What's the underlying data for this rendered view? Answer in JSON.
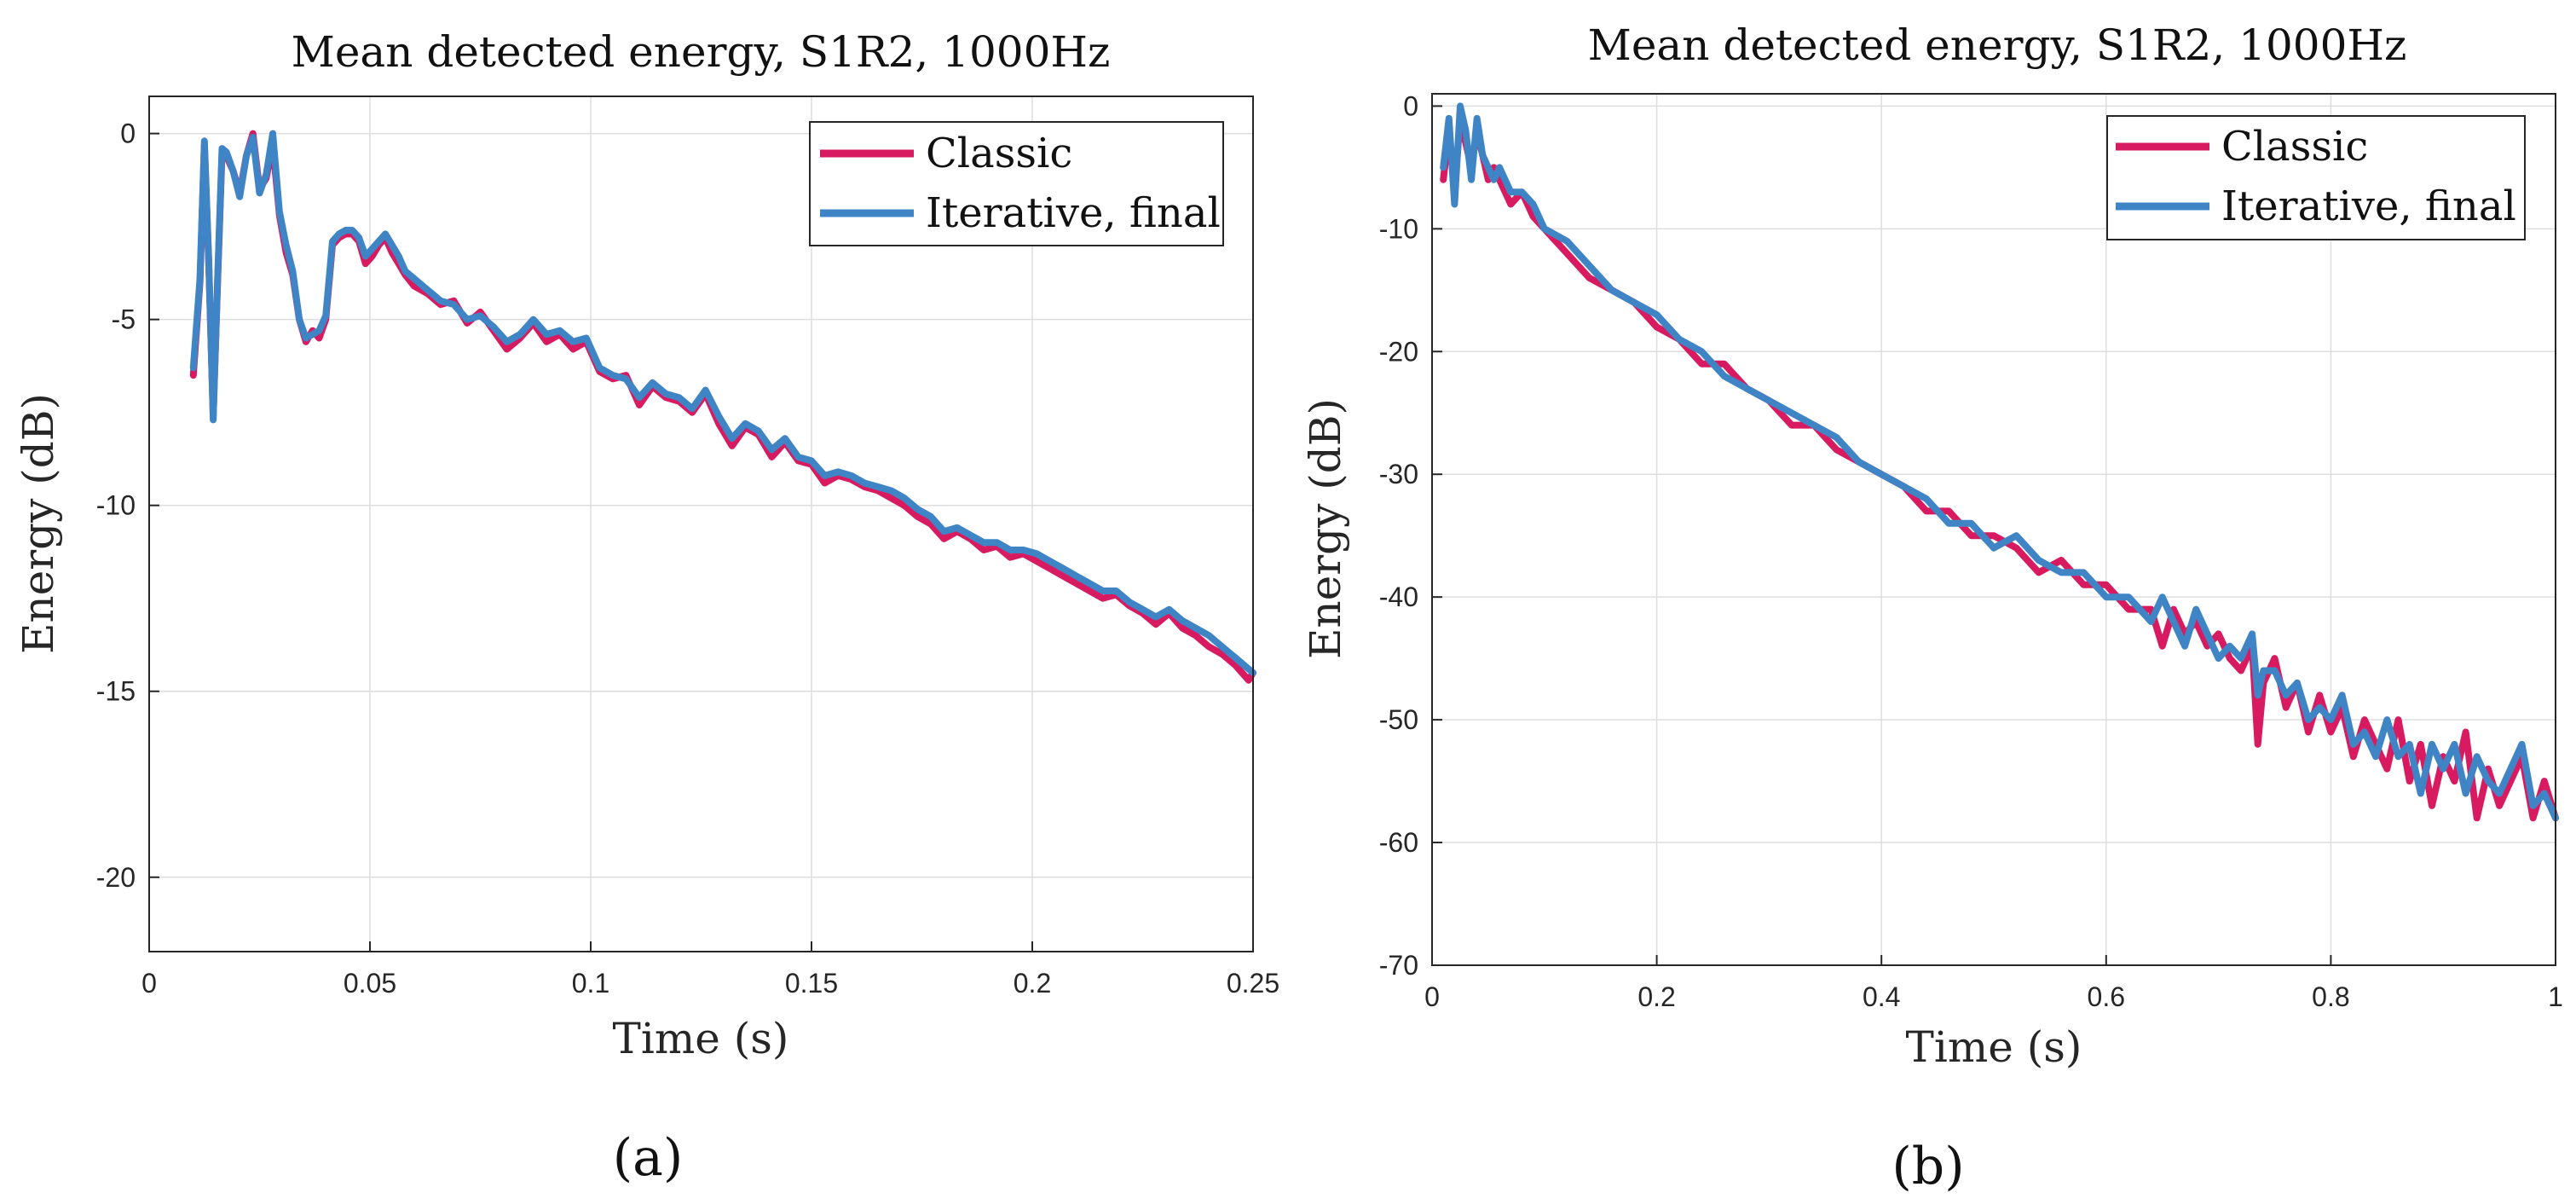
{
  "chart_data": [
    {
      "id": "a",
      "type": "line",
      "panel_label": "(a)",
      "title": "Mean detected energy, S1R2, 1000Hz",
      "xlabel": "Time (s)",
      "ylabel": "Energy (dB)",
      "xlim": [
        0,
        0.25
      ],
      "ylim": [
        -22,
        1
      ],
      "xticks": [
        0,
        0.05,
        0.1,
        0.15,
        0.2,
        0.25
      ],
      "xtick_labels": [
        "0",
        "0.05",
        "0.1",
        "0.15",
        "0.2",
        "0.25"
      ],
      "yticks": [
        0,
        -5,
        -10,
        -15,
        -20
      ],
      "ytick_labels": [
        "0",
        "-5",
        "-10",
        "-15",
        "-20"
      ],
      "grid": true,
      "legend_position": "top-right",
      "series": [
        {
          "name": "Classic",
          "color": "#d81b60",
          "x": [
            0.01,
            0.0115,
            0.0125,
            0.0135,
            0.0145,
            0.0155,
            0.0165,
            0.0175,
            0.019,
            0.0205,
            0.022,
            0.0235,
            0.025,
            0.0265,
            0.028,
            0.0295,
            0.031,
            0.0325,
            0.034,
            0.0355,
            0.037,
            0.0385,
            0.04,
            0.0415,
            0.043,
            0.0445,
            0.046,
            0.0475,
            0.049,
            0.0505,
            0.052,
            0.0535,
            0.055,
            0.0565,
            0.058,
            0.06,
            0.063,
            0.066,
            0.069,
            0.072,
            0.075,
            0.078,
            0.081,
            0.084,
            0.087,
            0.09,
            0.093,
            0.096,
            0.099,
            0.102,
            0.105,
            0.108,
            0.111,
            0.114,
            0.117,
            0.12,
            0.123,
            0.126,
            0.129,
            0.132,
            0.135,
            0.138,
            0.141,
            0.144,
            0.147,
            0.15,
            0.153,
            0.156,
            0.159,
            0.162,
            0.165,
            0.168,
            0.171,
            0.174,
            0.177,
            0.18,
            0.183,
            0.186,
            0.189,
            0.192,
            0.195,
            0.198,
            0.201,
            0.204,
            0.207,
            0.21,
            0.213,
            0.216,
            0.219,
            0.222,
            0.225,
            0.228,
            0.231,
            0.234,
            0.237,
            0.24,
            0.243,
            0.246,
            0.249,
            0.25
          ],
          "y": [
            -6.5,
            -4.0,
            -0.3,
            -3.5,
            -7.6,
            -4.0,
            -0.5,
            -0.6,
            -1.0,
            -1.6,
            -0.6,
            0.0,
            -1.5,
            -1.2,
            -0.3,
            -2.2,
            -3.2,
            -3.8,
            -5.0,
            -5.6,
            -5.3,
            -5.5,
            -5.0,
            -3.0,
            -2.8,
            -2.7,
            -2.7,
            -2.9,
            -3.5,
            -3.3,
            -3.0,
            -2.8,
            -3.2,
            -3.5,
            -3.8,
            -4.1,
            -4.3,
            -4.6,
            -4.5,
            -5.1,
            -4.8,
            -5.3,
            -5.8,
            -5.5,
            -5.1,
            -5.6,
            -5.4,
            -5.8,
            -5.6,
            -6.4,
            -6.6,
            -6.5,
            -7.3,
            -6.8,
            -7.1,
            -7.2,
            -7.5,
            -7.0,
            -7.8,
            -8.4,
            -7.9,
            -8.1,
            -8.7,
            -8.3,
            -8.8,
            -8.9,
            -9.4,
            -9.2,
            -9.3,
            -9.5,
            -9.6,
            -9.8,
            -10.0,
            -10.3,
            -10.5,
            -10.9,
            -10.7,
            -10.9,
            -11.2,
            -11.1,
            -11.4,
            -11.3,
            -11.5,
            -11.7,
            -11.9,
            -12.1,
            -12.3,
            -12.5,
            -12.4,
            -12.7,
            -12.9,
            -13.2,
            -12.9,
            -13.3,
            -13.5,
            -13.8,
            -14.0,
            -14.3,
            -14.7,
            -14.5
          ]
        },
        {
          "name": "Iterative, final",
          "color": "#3f85c6",
          "x": [
            0.01,
            0.0115,
            0.0125,
            0.0135,
            0.0145,
            0.0155,
            0.0165,
            0.0175,
            0.019,
            0.0205,
            0.022,
            0.0235,
            0.025,
            0.0265,
            0.028,
            0.0295,
            0.031,
            0.0325,
            0.034,
            0.0355,
            0.037,
            0.0385,
            0.04,
            0.0415,
            0.043,
            0.0445,
            0.046,
            0.0475,
            0.049,
            0.0505,
            0.052,
            0.0535,
            0.055,
            0.0565,
            0.058,
            0.06,
            0.063,
            0.066,
            0.069,
            0.072,
            0.075,
            0.078,
            0.081,
            0.084,
            0.087,
            0.09,
            0.093,
            0.096,
            0.099,
            0.102,
            0.105,
            0.108,
            0.111,
            0.114,
            0.117,
            0.12,
            0.123,
            0.126,
            0.129,
            0.132,
            0.135,
            0.138,
            0.141,
            0.144,
            0.147,
            0.15,
            0.153,
            0.156,
            0.159,
            0.162,
            0.165,
            0.168,
            0.171,
            0.174,
            0.177,
            0.18,
            0.183,
            0.186,
            0.189,
            0.192,
            0.195,
            0.198,
            0.201,
            0.204,
            0.207,
            0.21,
            0.213,
            0.216,
            0.219,
            0.222,
            0.225,
            0.228,
            0.231,
            0.234,
            0.237,
            0.24,
            0.243,
            0.246,
            0.249,
            0.25
          ],
          "y": [
            -6.3,
            -3.9,
            -0.2,
            -3.4,
            -7.7,
            -3.9,
            -0.4,
            -0.5,
            -1.0,
            -1.7,
            -0.6,
            -0.1,
            -1.6,
            -1.1,
            0.0,
            -2.1,
            -3.0,
            -3.7,
            -5.0,
            -5.5,
            -5.4,
            -5.3,
            -4.9,
            -2.9,
            -2.7,
            -2.6,
            -2.6,
            -2.8,
            -3.3,
            -3.1,
            -2.9,
            -2.7,
            -3.0,
            -3.3,
            -3.7,
            -3.9,
            -4.2,
            -4.5,
            -4.6,
            -5.0,
            -4.9,
            -5.2,
            -5.6,
            -5.4,
            -5.0,
            -5.4,
            -5.3,
            -5.6,
            -5.5,
            -6.3,
            -6.5,
            -6.6,
            -7.1,
            -6.7,
            -7.0,
            -7.1,
            -7.4,
            -6.9,
            -7.6,
            -8.2,
            -7.8,
            -8.0,
            -8.5,
            -8.2,
            -8.7,
            -8.8,
            -9.2,
            -9.1,
            -9.2,
            -9.4,
            -9.5,
            -9.6,
            -9.8,
            -10.1,
            -10.3,
            -10.7,
            -10.6,
            -10.8,
            -11.0,
            -11.0,
            -11.2,
            -11.2,
            -11.3,
            -11.5,
            -11.7,
            -11.9,
            -12.1,
            -12.3,
            -12.3,
            -12.6,
            -12.8,
            -13.0,
            -12.8,
            -13.1,
            -13.3,
            -13.5,
            -13.8,
            -14.1,
            -14.4,
            -14.5
          ]
        }
      ]
    },
    {
      "id": "b",
      "type": "line",
      "panel_label": "(b)",
      "title": "Mean detected energy, S1R2, 1000Hz",
      "xlabel": "Time (s)",
      "ylabel": "Energy (dB)",
      "xlim": [
        0,
        1
      ],
      "ylim": [
        -70,
        1
      ],
      "xticks": [
        0,
        0.2,
        0.4,
        0.6,
        0.8,
        1
      ],
      "xtick_labels": [
        "0",
        "0.2",
        "0.4",
        "0.6",
        "0.8",
        "1"
      ],
      "yticks": [
        0,
        -10,
        -20,
        -30,
        -40,
        -50,
        -60,
        -70
      ],
      "ytick_labels": [
        "0",
        "-10",
        "-20",
        "-30",
        "-40",
        "-50",
        "-60",
        "-70"
      ],
      "grid": true,
      "legend_position": "top-right",
      "series": [
        {
          "name": "Classic",
          "color": "#d81b60",
          "x": [
            0.01,
            0.015,
            0.02,
            0.025,
            0.03,
            0.035,
            0.04,
            0.045,
            0.05,
            0.055,
            0.06,
            0.07,
            0.08,
            0.09,
            0.1,
            0.12,
            0.14,
            0.16,
            0.18,
            0.2,
            0.22,
            0.24,
            0.26,
            0.28,
            0.3,
            0.32,
            0.34,
            0.36,
            0.38,
            0.4,
            0.42,
            0.44,
            0.46,
            0.48,
            0.5,
            0.52,
            0.54,
            0.56,
            0.58,
            0.6,
            0.62,
            0.64,
            0.65,
            0.66,
            0.67,
            0.68,
            0.69,
            0.7,
            0.71,
            0.72,
            0.73,
            0.735,
            0.74,
            0.75,
            0.76,
            0.77,
            0.78,
            0.79,
            0.8,
            0.81,
            0.82,
            0.83,
            0.84,
            0.85,
            0.86,
            0.87,
            0.88,
            0.89,
            0.9,
            0.91,
            0.92,
            0.93,
            0.94,
            0.95,
            0.96,
            0.97,
            0.98,
            0.99,
            1.0
          ],
          "y": [
            -6,
            -2,
            -7,
            -1,
            -3,
            -5,
            -2,
            -4,
            -6,
            -5,
            -6,
            -8,
            -7,
            -9,
            -10,
            -12,
            -14,
            -15,
            -16,
            -18,
            -19,
            -21,
            -21,
            -23,
            -24,
            -26,
            -26,
            -28,
            -29,
            -30,
            -31,
            -33,
            -33,
            -35,
            -35,
            -36,
            -38,
            -37,
            -39,
            -39,
            -41,
            -41,
            -44,
            -41,
            -43,
            -42,
            -44,
            -43,
            -45,
            -46,
            -44,
            -52,
            -47,
            -45,
            -49,
            -47,
            -51,
            -48,
            -51,
            -49,
            -53,
            -50,
            -52,
            -54,
            -50,
            -55,
            -52,
            -57,
            -53,
            -55,
            -51,
            -58,
            -54,
            -57,
            -55,
            -53,
            -58,
            -55,
            -58
          ]
        },
        {
          "name": "Iterative, final",
          "color": "#3f85c6",
          "x": [
            0.01,
            0.015,
            0.02,
            0.025,
            0.03,
            0.035,
            0.04,
            0.045,
            0.05,
            0.055,
            0.06,
            0.07,
            0.08,
            0.09,
            0.1,
            0.12,
            0.14,
            0.16,
            0.18,
            0.2,
            0.22,
            0.24,
            0.26,
            0.28,
            0.3,
            0.32,
            0.34,
            0.36,
            0.38,
            0.4,
            0.42,
            0.44,
            0.46,
            0.48,
            0.5,
            0.52,
            0.54,
            0.56,
            0.58,
            0.6,
            0.62,
            0.64,
            0.65,
            0.66,
            0.67,
            0.68,
            0.69,
            0.7,
            0.71,
            0.72,
            0.73,
            0.735,
            0.74,
            0.75,
            0.76,
            0.77,
            0.78,
            0.79,
            0.8,
            0.81,
            0.82,
            0.83,
            0.84,
            0.85,
            0.86,
            0.87,
            0.88,
            0.89,
            0.9,
            0.91,
            0.92,
            0.93,
            0.94,
            0.95,
            0.96,
            0.97,
            0.98,
            0.99,
            1.0
          ],
          "y": [
            -5,
            -1,
            -8,
            0,
            -2,
            -6,
            -1,
            -4,
            -5,
            -6,
            -5,
            -7,
            -7,
            -8,
            -10,
            -11,
            -13,
            -15,
            -16,
            -17,
            -19,
            -20,
            -22,
            -23,
            -24,
            -25,
            -26,
            -27,
            -29,
            -30,
            -31,
            -32,
            -34,
            -34,
            -36,
            -35,
            -37,
            -38,
            -38,
            -40,
            -40,
            -42,
            -40,
            -42,
            -44,
            -41,
            -43,
            -45,
            -44,
            -45,
            -43,
            -48,
            -46,
            -46,
            -48,
            -47,
            -50,
            -49,
            -50,
            -48,
            -52,
            -51,
            -53,
            -50,
            -53,
            -52,
            -56,
            -52,
            -54,
            -52,
            -56,
            -53,
            -55,
            -56,
            -54,
            -52,
            -57,
            -56,
            -58
          ]
        }
      ]
    }
  ]
}
